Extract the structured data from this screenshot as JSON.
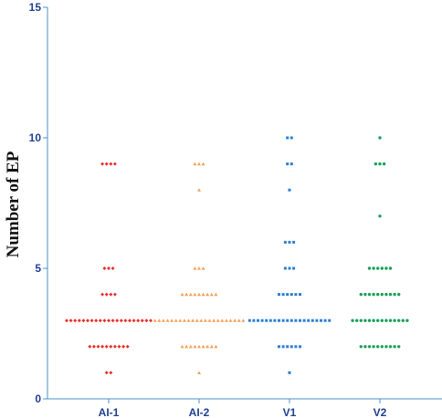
{
  "chart_data": {
    "type": "scatter",
    "title": "",
    "xlabel": "",
    "ylabel": "Number of EP",
    "ylim": [
      0,
      15
    ],
    "yticks": [
      0,
      5,
      10,
      15
    ],
    "grid": false,
    "categories": [
      "AI-1",
      "AI-2",
      "V1",
      "V2"
    ],
    "series": [
      {
        "category": "AI-1",
        "color": "#e8302a",
        "marker": "diamond",
        "groups": [
          {
            "value": 9,
            "count": 4
          },
          {
            "value": 5,
            "count": 3
          },
          {
            "value": 4,
            "count": 4
          },
          {
            "value": 3,
            "count": 21
          },
          {
            "value": 2,
            "count": 10
          },
          {
            "value": 1,
            "count": 2
          }
        ]
      },
      {
        "category": "AI-2",
        "color": "#f5a05a",
        "marker": "triangle",
        "groups": [
          {
            "value": 9,
            "count": 3
          },
          {
            "value": 8,
            "count": 1
          },
          {
            "value": 5,
            "count": 3
          },
          {
            "value": 4,
            "count": 9
          },
          {
            "value": 3,
            "count": 22
          },
          {
            "value": 2,
            "count": 9
          },
          {
            "value": 1,
            "count": 1
          }
        ]
      },
      {
        "category": "V1",
        "color": "#2b7fd4",
        "marker": "square",
        "groups": [
          {
            "value": 10,
            "count": 2
          },
          {
            "value": 9,
            "count": 2
          },
          {
            "value": 8,
            "count": 1
          },
          {
            "value": 6,
            "count": 3
          },
          {
            "value": 5,
            "count": 3
          },
          {
            "value": 4,
            "count": 6
          },
          {
            "value": 3,
            "count": 20
          },
          {
            "value": 2,
            "count": 6
          },
          {
            "value": 1,
            "count": 1
          }
        ]
      },
      {
        "category": "V2",
        "color": "#1aa05a",
        "marker": "circle",
        "groups": [
          {
            "value": 10,
            "count": 1
          },
          {
            "value": 9,
            "count": 3
          },
          {
            "value": 7,
            "count": 1
          },
          {
            "value": 5,
            "count": 6
          },
          {
            "value": 4,
            "count": 10
          },
          {
            "value": 3,
            "count": 14
          },
          {
            "value": 2,
            "count": 10
          }
        ]
      }
    ]
  }
}
